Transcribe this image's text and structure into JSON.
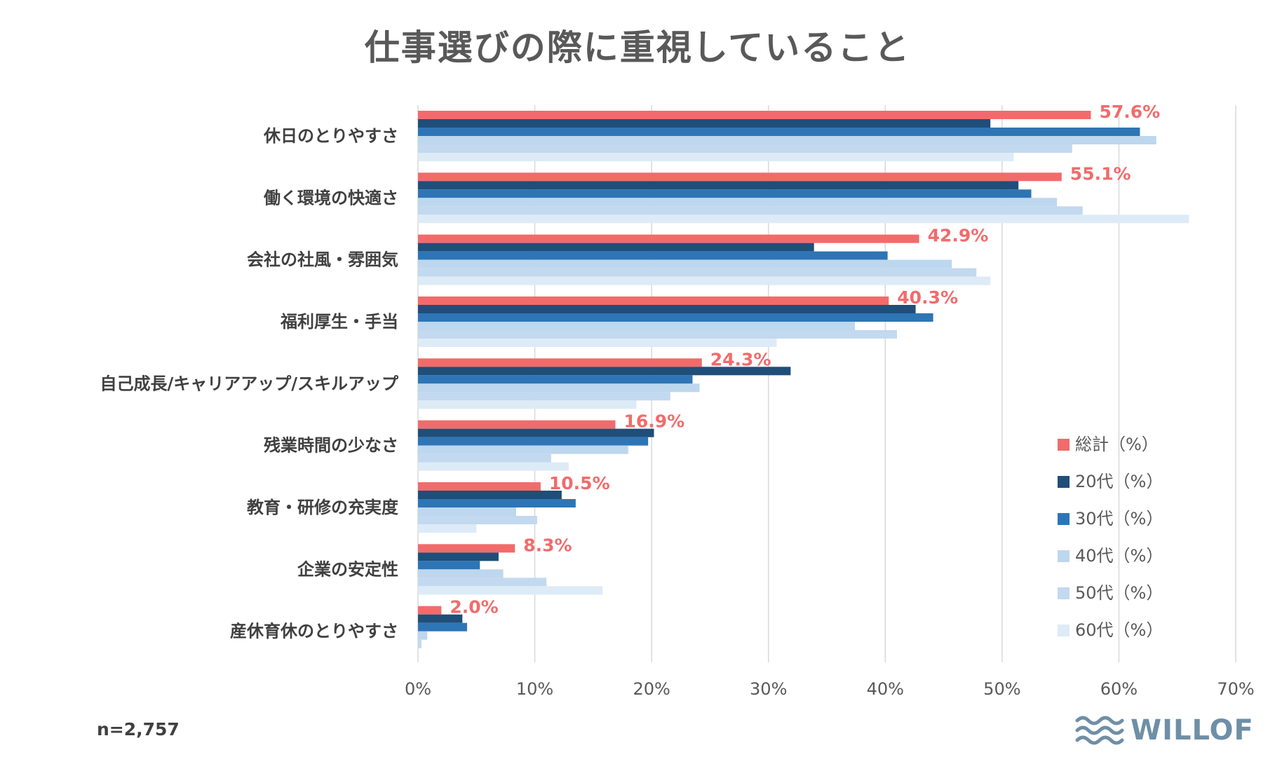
{
  "chart_data": {
    "type": "bar",
    "orientation": "horizontal",
    "title": "仕事選びの際に重視していること",
    "categories": [
      "休日のとりやすさ",
      "働く環境の快適さ",
      "会社の社風・雰囲気",
      "福利厚生・手当",
      "自己成長/キャリアアップ/スキルアップ",
      "残業時間の少なさ",
      "教育・研修の充実度",
      "企業の安定性",
      "産休育休のとりやすさ"
    ],
    "series": [
      {
        "name": "総計（%）",
        "color": "#f26b6b",
        "values": [
          57.6,
          55.1,
          42.9,
          40.3,
          24.3,
          16.9,
          10.5,
          8.3,
          2.0
        ]
      },
      {
        "name": "20代（%）",
        "color": "#1f4e79",
        "values": [
          49.0,
          51.4,
          33.9,
          42.6,
          31.9,
          20.2,
          12.3,
          6.9,
          3.8
        ]
      },
      {
        "name": "30代（%）",
        "color": "#2e75b6",
        "values": [
          61.8,
          52.5,
          40.2,
          44.1,
          23.5,
          19.7,
          13.5,
          5.3,
          4.2
        ]
      },
      {
        "name": "40代（%）",
        "color": "#bdd7ee",
        "values": [
          63.2,
          54.7,
          45.7,
          37.4,
          24.1,
          18.0,
          8.4,
          7.3,
          0.8
        ]
      },
      {
        "name": "50代（%）",
        "color": "#c2d9ef",
        "values": [
          56.0,
          56.9,
          47.8,
          41.0,
          21.6,
          11.4,
          10.2,
          11.0,
          0.3
        ]
      },
      {
        "name": "60代（%）",
        "color": "#ddebf7",
        "values": [
          51.0,
          66.0,
          49.0,
          30.7,
          18.7,
          12.9,
          5.0,
          15.8,
          0.0
        ]
      }
    ],
    "data_labels": [
      "57.6%",
      "55.1%",
      "42.9%",
      "40.3%",
      "24.3%",
      "16.9%",
      "10.5%",
      "8.3%",
      "2.0%"
    ],
    "xlim": [
      0,
      70
    ],
    "xticks": [
      "0%",
      "10%",
      "20%",
      "30%",
      "40%",
      "50%",
      "60%",
      "70%"
    ],
    "xlabel": "",
    "ylabel": "",
    "grid": true,
    "legend_position": "right"
  },
  "note": "n=2,757",
  "logo": {
    "name": "wave-logo-icon",
    "text": "WILLOF"
  }
}
